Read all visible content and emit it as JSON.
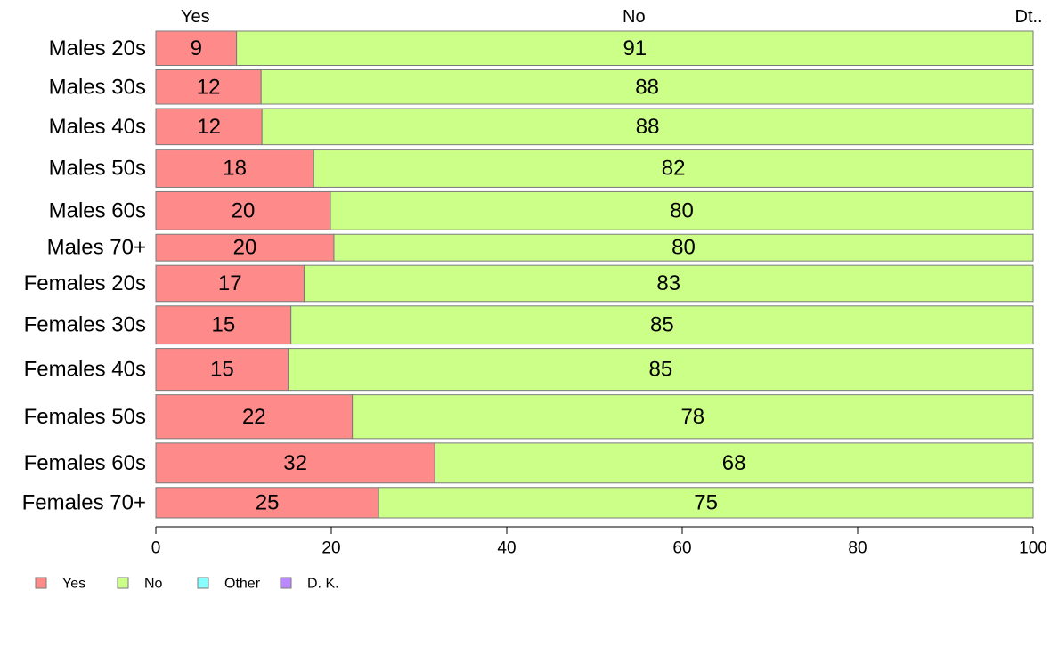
{
  "chart_data": {
    "type": "bar",
    "orientation": "horizontal",
    "stacked": true,
    "categories": [
      "Males 20s",
      "Males 30s",
      "Males 40s",
      "Males 50s",
      "Males 60s",
      "Males 70+",
      "Females 20s",
      "Females 30s",
      "Females 40s",
      "Females 50s",
      "Females 60s",
      "Females 70+"
    ],
    "bar_weights": [
      0.9,
      0.9,
      0.95,
      1.0,
      1.0,
      0.7,
      0.95,
      1.0,
      1.1,
      1.15,
      1.05,
      0.8
    ],
    "series": [
      {
        "name": "Yes",
        "color": "#ff8a8a",
        "values": [
          9.2,
          12,
          12.1,
          18,
          19.9,
          20.3,
          16.9,
          15.4,
          15.1,
          22.4,
          31.8,
          25.4
        ],
        "labels": [
          "9",
          "12",
          "12",
          "18",
          "20",
          "20",
          "17",
          "15",
          "15",
          "22",
          "32",
          "25"
        ]
      },
      {
        "name": "No",
        "color": "#ccff88",
        "values": [
          90.8,
          88,
          87.9,
          82,
          80.1,
          79.7,
          83.1,
          84.6,
          84.9,
          77.6,
          68.2,
          74.6
        ],
        "labels": [
          "91",
          "88",
          "88",
          "82",
          "80",
          "80",
          "83",
          "85",
          "85",
          "78",
          "68",
          "75"
        ]
      },
      {
        "name": "Other",
        "color": "#88ffff",
        "values": [
          0,
          0,
          0,
          0,
          0,
          0,
          0,
          0,
          0,
          0,
          0,
          0
        ],
        "labels": [
          "",
          "",
          "",
          "",
          "",
          "",
          "",
          "",
          "",
          "",
          "",
          ""
        ]
      },
      {
        "name": "D. K.",
        "color": "#bb88ff",
        "values": [
          0,
          0,
          0,
          0,
          0,
          0,
          0,
          0,
          0,
          0,
          0,
          0
        ],
        "labels": [
          "",
          "",
          "",
          "",
          "",
          "",
          "",
          "",
          "",
          "",
          "",
          ""
        ]
      }
    ],
    "top_labels": [
      {
        "text": "Yes",
        "at": 4.5
      },
      {
        "text": "No",
        "at": 54.5
      },
      {
        "text": "Dt..",
        "at": 99.5
      }
    ],
    "xlim": [
      0,
      100
    ],
    "xticks": [
      0,
      20,
      40,
      60,
      80,
      100
    ],
    "legend": {
      "placement": "bottom-left",
      "items": [
        "Yes",
        "No",
        "Other",
        "D. K."
      ]
    },
    "grid": false
  }
}
